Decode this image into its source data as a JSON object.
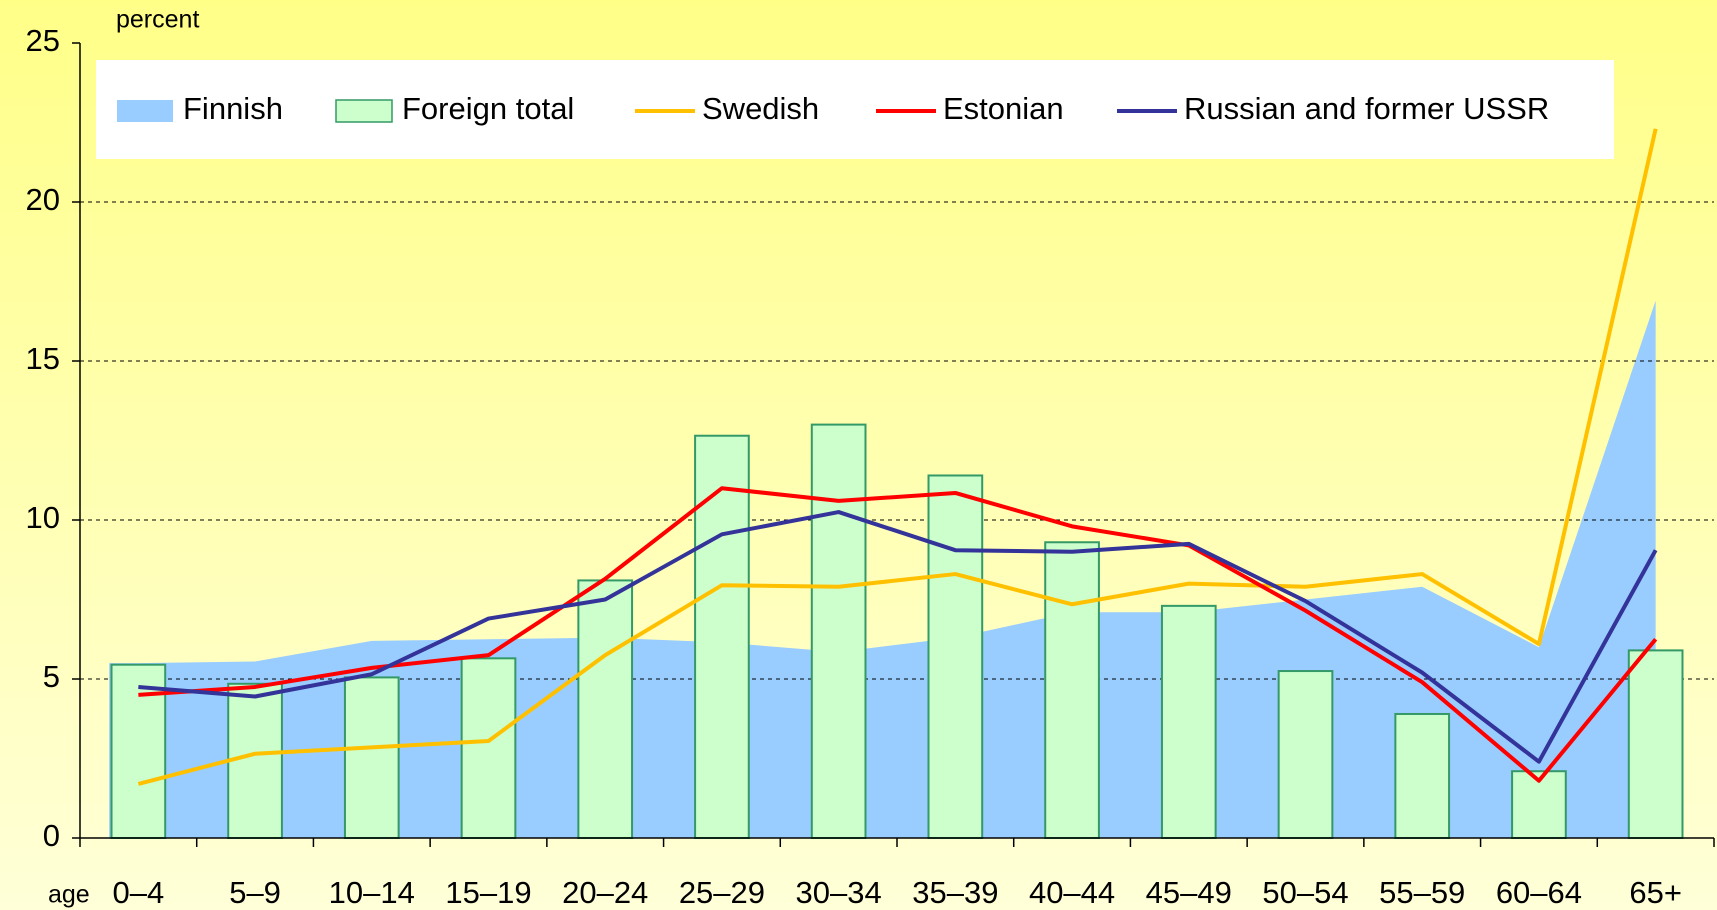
{
  "chart_data": {
    "type": "combo",
    "y_label": "percent",
    "x_label": "age",
    "categories": [
      "0–4",
      "5–9",
      "10–14",
      "15–19",
      "20–24",
      "25–29",
      "30–34",
      "35–39",
      "40–44",
      "45–49",
      "50–54",
      "55–59",
      "60–64",
      "65+"
    ],
    "series": [
      {
        "name": "Finnish",
        "kind": "area",
        "color": "#99ccff",
        "values": [
          5.5,
          5.55,
          6.2,
          6.25,
          6.3,
          6.15,
          5.85,
          6.3,
          7.1,
          7.1,
          7.5,
          7.9,
          6.0,
          16.9
        ]
      },
      {
        "name": "Foreign total",
        "kind": "bar",
        "color": "#ccffcc",
        "edge": "#339966",
        "values": [
          5.45,
          4.85,
          5.05,
          5.65,
          8.1,
          12.65,
          13.0,
          11.4,
          9.3,
          7.3,
          5.25,
          3.9,
          2.1,
          5.9
        ]
      },
      {
        "name": "Swedish",
        "kind": "line",
        "color": "#ffc000",
        "values": [
          1.7,
          2.65,
          2.85,
          3.05,
          5.75,
          7.95,
          7.9,
          8.3,
          7.35,
          8.0,
          7.9,
          8.3,
          6.1,
          22.3
        ]
      },
      {
        "name": "Estonian",
        "kind": "line",
        "color": "#ff0000",
        "values": [
          4.5,
          4.75,
          5.35,
          5.75,
          8.15,
          11.0,
          10.6,
          10.85,
          9.8,
          9.2,
          7.15,
          4.9,
          1.8,
          6.25
        ]
      },
      {
        "name": "Russian and former USSR",
        "kind": "line",
        "color": "#333399",
        "values": [
          4.75,
          4.45,
          5.15,
          6.9,
          7.5,
          9.55,
          10.25,
          9.05,
          9.0,
          9.25,
          7.45,
          5.2,
          2.4,
          9.05
        ]
      }
    ],
    "ylim": [
      0,
      25
    ],
    "yticks": [
      0,
      5,
      10,
      15,
      20,
      25
    ],
    "grid": true
  }
}
